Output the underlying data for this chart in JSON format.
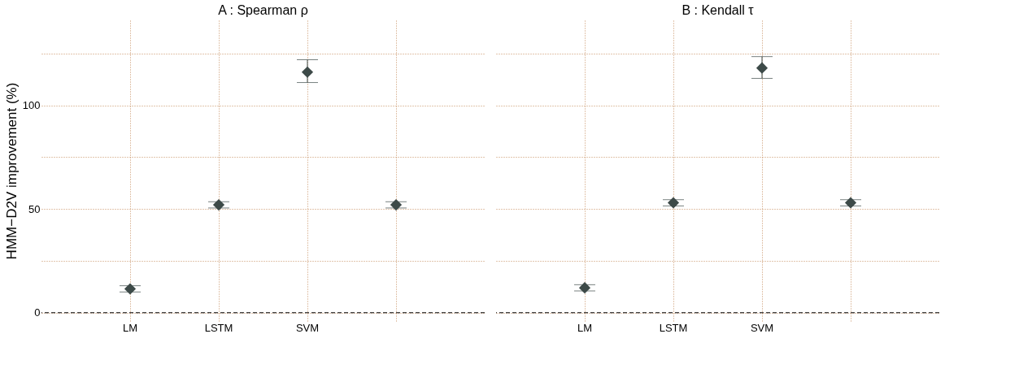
{
  "chart_data": [
    {
      "type": "scatter",
      "title": "A : Spearman ρ",
      "ylabel": "HMM−D2V improvement (%)",
      "categories": [
        "LM",
        "LSTM",
        "SVM",
        null
      ],
      "series": [
        {
          "color": "#3d4a48",
          "values": [
            11.5,
            52,
            116,
            52
          ],
          "errors": [
            [
              10,
              13
            ],
            [
              50.5,
              53.5
            ],
            [
              111,
              122
            ],
            [
              50.5,
              53.5
            ]
          ]
        }
      ],
      "marker": "diamond",
      "ylim": [
        -4,
        141
      ],
      "yticks": [
        0,
        {
          "value": 25,
          "label": null
        },
        50,
        {
          "value": 75,
          "label": null
        },
        100,
        {
          "value": 125,
          "label": null
        }
      ],
      "grid": true,
      "ref_lines": [
        {
          "axis": "y",
          "value": 0,
          "color": "#000000",
          "line_style": "dashed"
        }
      ]
    },
    {
      "type": "scatter",
      "title": "B : Kendall τ",
      "categories": [
        "LM",
        "LSTM",
        "SVM",
        null
      ],
      "series": [
        {
          "color": "#3d4a48",
          "values": [
            12,
            53,
            118,
            53
          ],
          "errors": [
            [
              10.5,
              13.5
            ],
            [
              51.5,
              54.5
            ],
            [
              113,
              123.5
            ],
            [
              51.5,
              54.5
            ]
          ]
        }
      ],
      "marker": "diamond",
      "ylim": [
        -4,
        141
      ],
      "yticks": [
        0,
        {
          "value": 25,
          "label": null
        },
        50,
        {
          "value": 75,
          "label": null
        },
        100,
        {
          "value": 125,
          "label": null
        }
      ],
      "grid": true,
      "tick_labels": "x",
      "ref_lines": [
        {
          "axis": "y",
          "value": 0,
          "color": "#000000",
          "line_style": "dashed"
        }
      ]
    }
  ]
}
